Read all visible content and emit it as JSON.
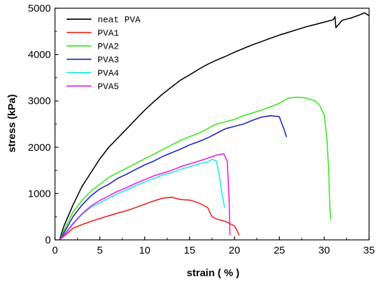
{
  "chart_data": {
    "type": "line",
    "xlabel": "strain ( % )",
    "ylabel": "stress (kPa)",
    "xlim": [
      0,
      35
    ],
    "ylim": [
      0,
      5000
    ],
    "x_ticks": [
      "0",
      "5",
      "10",
      "15",
      "20",
      "25",
      "30",
      "35"
    ],
    "y_ticks": [
      "0",
      "1000",
      "2000",
      "3000",
      "4000",
      "5000"
    ],
    "grid": false,
    "legend_position": "top-left",
    "series": [
      {
        "name": "neat PVA",
        "color": "#000000",
        "points": [
          [
            0.5,
            0
          ],
          [
            1,
            300
          ],
          [
            2,
            750
          ],
          [
            3,
            1150
          ],
          [
            4,
            1450
          ],
          [
            5,
            1750
          ],
          [
            6,
            2000
          ],
          [
            7,
            2200
          ],
          [
            8,
            2400
          ],
          [
            9,
            2600
          ],
          [
            10,
            2800
          ],
          [
            11,
            2980
          ],
          [
            12,
            3150
          ],
          [
            13,
            3300
          ],
          [
            14,
            3450
          ],
          [
            15,
            3560
          ],
          [
            16,
            3680
          ],
          [
            17,
            3790
          ],
          [
            18,
            3880
          ],
          [
            19,
            3960
          ],
          [
            20,
            4050
          ],
          [
            21,
            4130
          ],
          [
            22,
            4210
          ],
          [
            23,
            4280
          ],
          [
            24,
            4350
          ],
          [
            25,
            4420
          ],
          [
            26,
            4480
          ],
          [
            27,
            4540
          ],
          [
            28,
            4600
          ],
          [
            29,
            4650
          ],
          [
            30,
            4700
          ],
          [
            31,
            4750
          ],
          [
            31.2,
            4820
          ],
          [
            31.3,
            4580
          ],
          [
            32,
            4740
          ],
          [
            33,
            4790
          ],
          [
            34,
            4860
          ],
          [
            34.5,
            4900
          ],
          [
            35,
            4840
          ]
        ]
      },
      {
        "name": "PVA1",
        "color": "#e8211b",
        "points": [
          [
            0.5,
            0
          ],
          [
            1,
            80
          ],
          [
            2,
            250
          ],
          [
            3,
            330
          ],
          [
            4,
            400
          ],
          [
            5,
            460
          ],
          [
            6,
            520
          ],
          [
            7,
            580
          ],
          [
            8,
            630
          ],
          [
            9,
            700
          ],
          [
            10,
            770
          ],
          [
            11,
            840
          ],
          [
            12,
            900
          ],
          [
            13,
            920
          ],
          [
            14,
            870
          ],
          [
            15,
            860
          ],
          [
            16,
            800
          ],
          [
            17,
            700
          ],
          [
            17.5,
            500
          ],
          [
            18,
            450
          ],
          [
            19,
            400
          ],
          [
            19.5,
            350
          ],
          [
            20,
            300
          ],
          [
            20.3,
            200
          ],
          [
            20.5,
            100
          ]
        ]
      },
      {
        "name": "PVA2",
        "color": "#3ce81b",
        "points": [
          [
            0.5,
            0
          ],
          [
            1,
            200
          ],
          [
            2,
            600
          ],
          [
            3,
            850
          ],
          [
            4,
            1050
          ],
          [
            5,
            1200
          ],
          [
            6,
            1350
          ],
          [
            7,
            1450
          ],
          [
            8,
            1550
          ],
          [
            9,
            1650
          ],
          [
            10,
            1750
          ],
          [
            11,
            1850
          ],
          [
            12,
            1950
          ],
          [
            13,
            2050
          ],
          [
            14,
            2150
          ],
          [
            15,
            2230
          ],
          [
            16,
            2300
          ],
          [
            17,
            2400
          ],
          [
            18,
            2500
          ],
          [
            19,
            2550
          ],
          [
            20,
            2600
          ],
          [
            21,
            2680
          ],
          [
            22,
            2740
          ],
          [
            23,
            2800
          ],
          [
            24,
            2870
          ],
          [
            25,
            2950
          ],
          [
            26,
            3060
          ],
          [
            27,
            3080
          ],
          [
            28,
            3060
          ],
          [
            29,
            3000
          ],
          [
            29.5,
            2900
          ],
          [
            30,
            2700
          ],
          [
            30.3,
            2200
          ],
          [
            30.5,
            1500
          ],
          [
            30.6,
            900
          ],
          [
            30.7,
            450
          ]
        ]
      },
      {
        "name": "PVA3",
        "color": "#1b22c8",
        "points": [
          [
            0.5,
            0
          ],
          [
            1,
            150
          ],
          [
            2,
            500
          ],
          [
            3,
            750
          ],
          [
            4,
            950
          ],
          [
            5,
            1100
          ],
          [
            6,
            1200
          ],
          [
            7,
            1330
          ],
          [
            8,
            1420
          ],
          [
            9,
            1520
          ],
          [
            10,
            1620
          ],
          [
            11,
            1700
          ],
          [
            12,
            1800
          ],
          [
            13,
            1880
          ],
          [
            14,
            1960
          ],
          [
            15,
            2050
          ],
          [
            16,
            2120
          ],
          [
            17,
            2200
          ],
          [
            18,
            2300
          ],
          [
            19,
            2400
          ],
          [
            20,
            2450
          ],
          [
            21,
            2500
          ],
          [
            22,
            2580
          ],
          [
            23,
            2650
          ],
          [
            24,
            2680
          ],
          [
            25,
            2660
          ],
          [
            25.3,
            2500
          ],
          [
            25.5,
            2400
          ],
          [
            25.8,
            2220
          ]
        ]
      },
      {
        "name": "PVA4",
        "color": "#1be8e8",
        "points": [
          [
            0.5,
            0
          ],
          [
            1,
            100
          ],
          [
            2,
            330
          ],
          [
            3,
            550
          ],
          [
            4,
            700
          ],
          [
            5,
            800
          ],
          [
            6,
            900
          ],
          [
            7,
            1000
          ],
          [
            8,
            1080
          ],
          [
            9,
            1170
          ],
          [
            10,
            1250
          ],
          [
            11,
            1320
          ],
          [
            12,
            1400
          ],
          [
            13,
            1450
          ],
          [
            14,
            1520
          ],
          [
            15,
            1580
          ],
          [
            16,
            1640
          ],
          [
            17,
            1680
          ],
          [
            17.5,
            1740
          ],
          [
            18,
            1700
          ],
          [
            18.3,
            1400
          ],
          [
            18.6,
            1000
          ],
          [
            18.9,
            700
          ]
        ]
      },
      {
        "name": "PVA5",
        "color": "#e81be8",
        "points": [
          [
            0.5,
            0
          ],
          [
            1,
            100
          ],
          [
            2,
            350
          ],
          [
            3,
            560
          ],
          [
            4,
            730
          ],
          [
            5,
            850
          ],
          [
            6,
            950
          ],
          [
            7,
            1050
          ],
          [
            8,
            1130
          ],
          [
            9,
            1220
          ],
          [
            10,
            1300
          ],
          [
            11,
            1380
          ],
          [
            12,
            1440
          ],
          [
            13,
            1500
          ],
          [
            14,
            1580
          ],
          [
            15,
            1640
          ],
          [
            16,
            1700
          ],
          [
            17,
            1760
          ],
          [
            18,
            1830
          ],
          [
            18.8,
            1860
          ],
          [
            19.2,
            1700
          ],
          [
            19.4,
            900
          ],
          [
            19.5,
            100
          ]
        ]
      }
    ]
  }
}
